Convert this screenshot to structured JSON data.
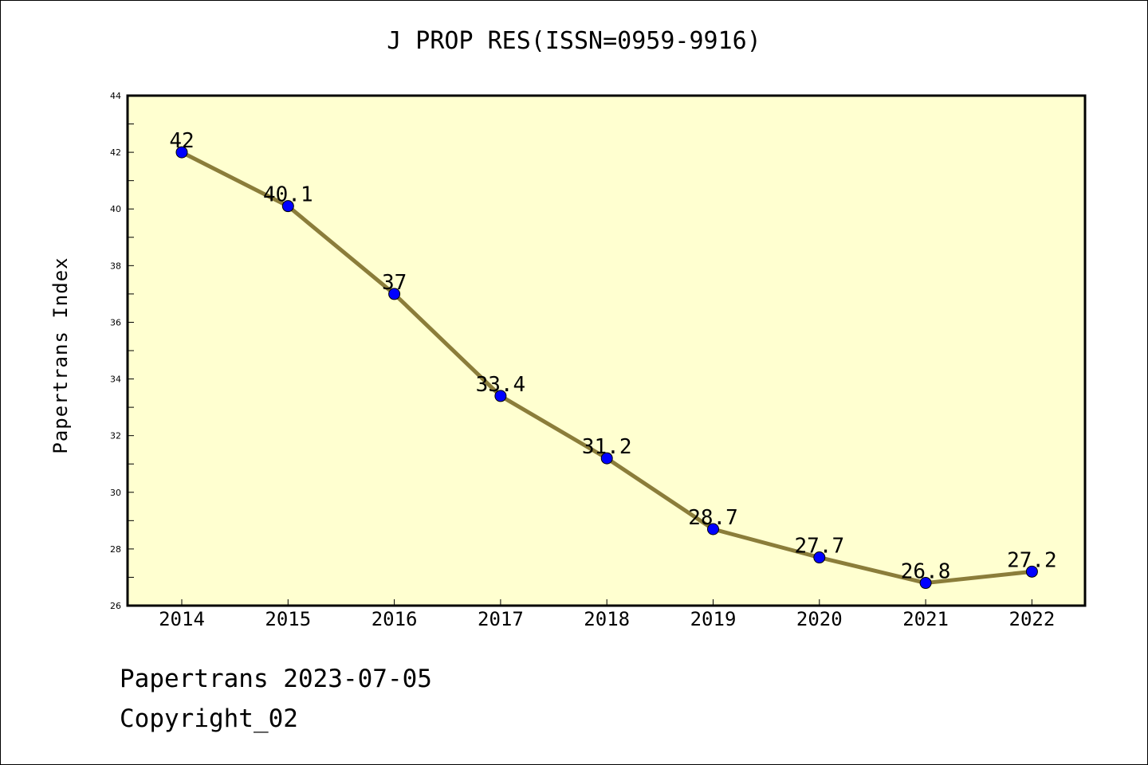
{
  "chart_data": {
    "type": "line",
    "title": "J PROP RES(ISSN=0959-9916)",
    "xlabel": "",
    "ylabel": "Papertrans Index",
    "categories": [
      "2014",
      "2015",
      "2016",
      "2017",
      "2018",
      "2019",
      "2020",
      "2021",
      "2022"
    ],
    "series": [
      {
        "values": [
          42,
          40.1,
          37,
          33.4,
          31.2,
          28.7,
          27.7,
          26.8,
          27.2
        ],
        "labels": [
          "42",
          "40.1",
          "37",
          "33.4",
          "31.2",
          "28.7",
          "27.7",
          "26.8",
          "27.2"
        ]
      }
    ],
    "ylim": [
      26,
      44
    ],
    "yticks": [
      "26",
      "28",
      "30",
      "32",
      "34",
      "36",
      "38",
      "40",
      "42",
      "44"
    ],
    "grid": false,
    "colors": {
      "plot_background": "#ffffd0",
      "line": "#8b7d3a",
      "marker": "#0000ff"
    }
  },
  "footer": {
    "date_text": "Papertrans 2023-07-05",
    "copyright_text": "Copyright_02"
  }
}
